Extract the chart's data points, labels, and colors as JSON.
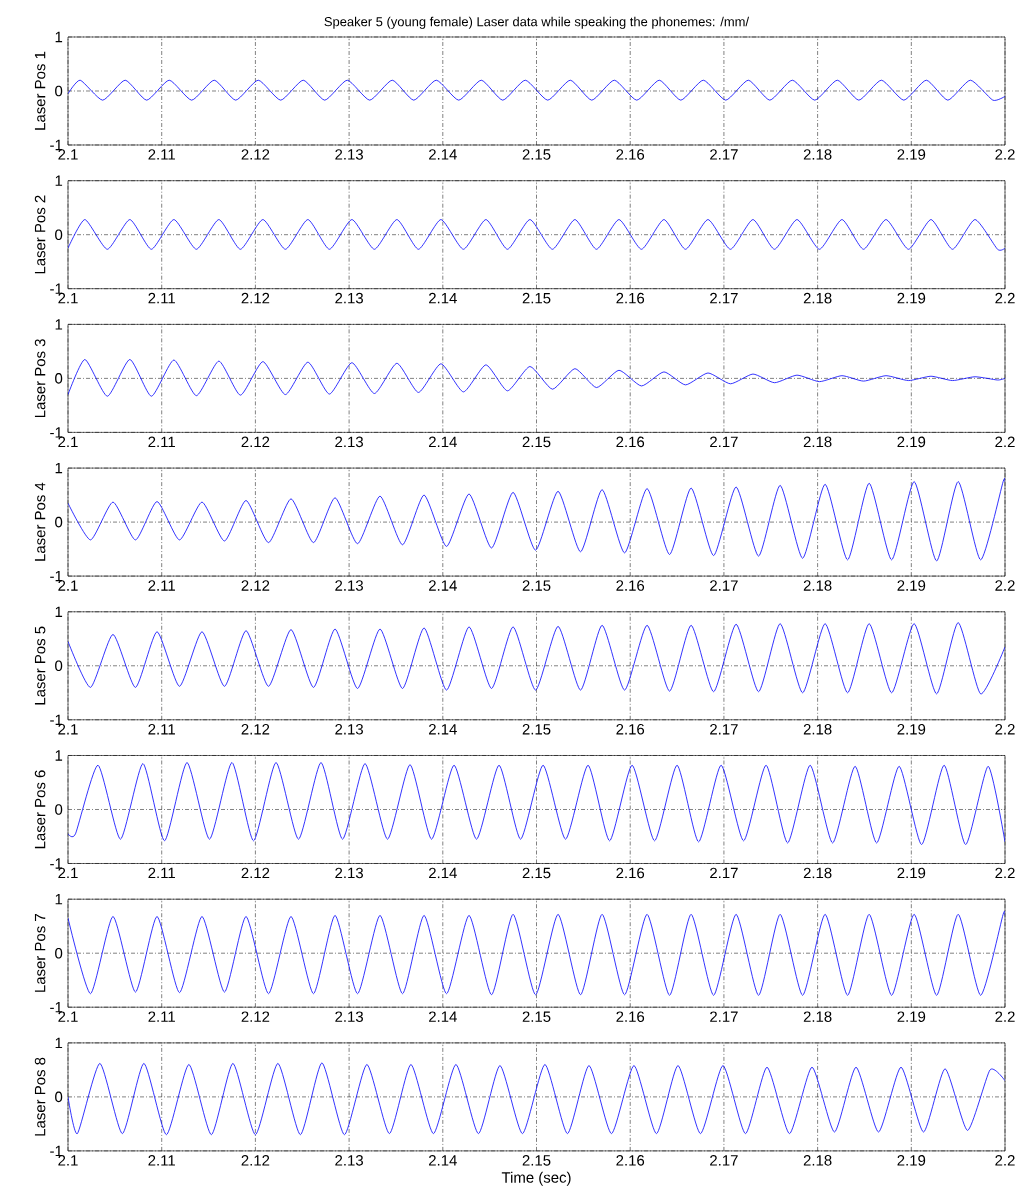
{
  "chart_data": [
    {
      "type": "line",
      "title": "Speaker 5 (young female) Laser data while speaking the phonemes: /mm/",
      "ylabel": "Laser Pos 1",
      "xlim": [
        2.1,
        2.2
      ],
      "xticks": [
        2.1,
        2.11,
        2.12,
        2.13,
        2.14,
        2.15,
        2.16,
        2.17,
        2.18,
        2.19,
        2.2
      ],
      "ylim": [
        -1,
        1
      ],
      "yticks": [
        -1,
        0,
        1
      ],
      "grid": true,
      "series": [
        {
          "color": "#0000ff",
          "x": [
            2.1,
            2.1013,
            2.1037,
            2.1061,
            2.1084,
            2.1108,
            2.1132,
            2.1156,
            2.1179,
            2.1203,
            2.1227,
            2.1251,
            2.1274,
            2.1298,
            2.1322,
            2.1346,
            2.1369,
            2.1393,
            2.1417,
            2.1441,
            2.1464,
            2.1488,
            2.1512,
            2.1536,
            2.1559,
            2.1583,
            2.1607,
            2.1631,
            2.1654,
            2.1678,
            2.1702,
            2.1726,
            2.1749,
            2.1773,
            2.1797,
            2.1821,
            2.1844,
            2.1868,
            2.1892,
            2.1916,
            2.1939,
            2.1963,
            2.1987,
            2.2
          ],
          "values": [
            -0.05,
            0.2,
            -0.17,
            0.2,
            -0.17,
            0.2,
            -0.17,
            0.2,
            -0.17,
            0.2,
            -0.17,
            0.2,
            -0.17,
            0.2,
            -0.17,
            0.2,
            -0.17,
            0.2,
            -0.17,
            0.2,
            -0.17,
            0.2,
            -0.17,
            0.2,
            -0.17,
            0.2,
            -0.17,
            0.2,
            -0.17,
            0.2,
            -0.17,
            0.2,
            -0.17,
            0.2,
            -0.17,
            0.2,
            -0.17,
            0.2,
            -0.17,
            0.2,
            -0.17,
            0.2,
            -0.17,
            -0.1
          ]
        }
      ]
    },
    {
      "type": "line",
      "ylabel": "Laser Pos 2",
      "xlim": [
        2.1,
        2.2
      ],
      "xticks": [
        2.1,
        2.11,
        2.12,
        2.13,
        2.14,
        2.15,
        2.16,
        2.17,
        2.18,
        2.19,
        2.2
      ],
      "ylim": [
        -1,
        1
      ],
      "yticks": [
        -1,
        0,
        1
      ],
      "grid": true,
      "series": [
        {
          "color": "#0000ff",
          "x": [
            2.1,
            2.1018,
            2.1042,
            2.1066,
            2.1089,
            2.1113,
            2.1137,
            2.1161,
            2.1184,
            2.1208,
            2.1232,
            2.1256,
            2.1279,
            2.1303,
            2.1327,
            2.1351,
            2.1374,
            2.1398,
            2.1422,
            2.1446,
            2.1469,
            2.1493,
            2.1517,
            2.1541,
            2.1564,
            2.1588,
            2.1612,
            2.1636,
            2.1659,
            2.1683,
            2.1707,
            2.1731,
            2.1754,
            2.1778,
            2.1802,
            2.1826,
            2.1849,
            2.1873,
            2.1897,
            2.1921,
            2.1944,
            2.1968,
            2.1992,
            2.2
          ],
          "values": [
            -0.25,
            0.28,
            -0.27,
            0.28,
            -0.27,
            0.28,
            -0.27,
            0.28,
            -0.27,
            0.28,
            -0.27,
            0.28,
            -0.27,
            0.28,
            -0.27,
            0.28,
            -0.27,
            0.28,
            -0.27,
            0.28,
            -0.27,
            0.28,
            -0.27,
            0.28,
            -0.27,
            0.28,
            -0.27,
            0.28,
            -0.27,
            0.28,
            -0.27,
            0.28,
            -0.27,
            0.28,
            -0.27,
            0.28,
            -0.27,
            0.28,
            -0.27,
            0.28,
            -0.27,
            0.28,
            -0.27,
            -0.25
          ]
        }
      ]
    },
    {
      "type": "line",
      "ylabel": "Laser Pos 3",
      "xlim": [
        2.1,
        2.2
      ],
      "xticks": [
        2.1,
        2.11,
        2.12,
        2.13,
        2.14,
        2.15,
        2.16,
        2.17,
        2.18,
        2.19,
        2.2
      ],
      "ylim": [
        -1,
        1
      ],
      "yticks": [
        -1,
        0,
        1
      ],
      "grid": true,
      "series": [
        {
          "color": "#0000ff",
          "x": [
            2.1,
            2.1018,
            2.1042,
            2.1066,
            2.1089,
            2.1113,
            2.1137,
            2.1161,
            2.1184,
            2.1208,
            2.1232,
            2.1256,
            2.1279,
            2.1303,
            2.1327,
            2.1351,
            2.1374,
            2.1398,
            2.1422,
            2.1446,
            2.1469,
            2.1493,
            2.1517,
            2.1541,
            2.1564,
            2.1588,
            2.1612,
            2.1636,
            2.1659,
            2.1683,
            2.1707,
            2.1731,
            2.1754,
            2.1778,
            2.1802,
            2.1826,
            2.1849,
            2.1873,
            2.1897,
            2.1921,
            2.1944,
            2.1968,
            2.1992,
            2.2
          ],
          "values": [
            -0.3,
            0.35,
            -0.33,
            0.35,
            -0.33,
            0.34,
            -0.32,
            0.32,
            -0.31,
            0.31,
            -0.3,
            0.3,
            -0.29,
            0.29,
            -0.28,
            0.28,
            -0.26,
            0.27,
            -0.25,
            0.25,
            -0.23,
            0.22,
            -0.2,
            0.18,
            -0.17,
            0.15,
            -0.14,
            0.12,
            -0.12,
            0.1,
            -0.1,
            0.08,
            -0.08,
            0.06,
            -0.06,
            0.05,
            -0.05,
            0.05,
            -0.04,
            0.04,
            -0.04,
            0.03,
            -0.03,
            0
          ]
        }
      ]
    },
    {
      "type": "line",
      "ylabel": "Laser Pos 4",
      "xlim": [
        2.1,
        2.2
      ],
      "xticks": [
        2.1,
        2.11,
        2.12,
        2.13,
        2.14,
        2.15,
        2.16,
        2.17,
        2.18,
        2.19,
        2.2
      ],
      "ylim": [
        -1,
        1
      ],
      "yticks": [
        -1,
        0,
        1
      ],
      "grid": true,
      "series": [
        {
          "color": "#0000ff",
          "x": [
            2.1,
            2.1024,
            2.1048,
            2.1072,
            2.1095,
            2.1119,
            2.1143,
            2.1167,
            2.119,
            2.1214,
            2.1238,
            2.1262,
            2.1285,
            2.1309,
            2.1333,
            2.1357,
            2.138,
            2.1404,
            2.1428,
            2.1452,
            2.1475,
            2.1499,
            2.1523,
            2.1547,
            2.157,
            2.1594,
            2.1618,
            2.1642,
            2.1665,
            2.1689,
            2.1713,
            2.1737,
            2.176,
            2.1784,
            2.1808,
            2.1832,
            2.1855,
            2.1879,
            2.1903,
            2.1927,
            2.195,
            2.1974,
            2.1998,
            2.2
          ],
          "values": [
            0.35,
            -0.33,
            0.37,
            -0.33,
            0.38,
            -0.33,
            0.37,
            -0.35,
            0.4,
            -0.38,
            0.43,
            -0.38,
            0.45,
            -0.4,
            0.48,
            -0.42,
            0.5,
            -0.45,
            0.52,
            -0.48,
            0.55,
            -0.52,
            0.57,
            -0.55,
            0.6,
            -0.57,
            0.62,
            -0.6,
            0.63,
            -0.62,
            0.65,
            -0.63,
            0.68,
            -0.67,
            0.7,
            -0.7,
            0.72,
            -0.7,
            0.75,
            -0.72,
            0.75,
            -0.7,
            0.75,
            0.74
          ]
        }
      ]
    },
    {
      "type": "line",
      "ylabel": "Laser Pos 5",
      "xlim": [
        2.1,
        2.2
      ],
      "xticks": [
        2.1,
        2.11,
        2.12,
        2.13,
        2.14,
        2.15,
        2.16,
        2.17,
        2.18,
        2.19,
        2.2
      ],
      "ylim": [
        -1,
        1
      ],
      "yticks": [
        -1,
        0,
        1
      ],
      "grid": true,
      "series": [
        {
          "color": "#0000ff",
          "x": [
            2.1,
            2.1024,
            2.1048,
            2.1072,
            2.1095,
            2.1119,
            2.1143,
            2.1167,
            2.119,
            2.1214,
            2.1238,
            2.1262,
            2.1285,
            2.1309,
            2.1333,
            2.1357,
            2.138,
            2.1404,
            2.1428,
            2.1452,
            2.1475,
            2.1499,
            2.1523,
            2.1547,
            2.157,
            2.1594,
            2.1618,
            2.1642,
            2.1665,
            2.1689,
            2.1713,
            2.1737,
            2.176,
            2.1784,
            2.1808,
            2.1832,
            2.1855,
            2.1879,
            2.1903,
            2.1927,
            2.195,
            2.1974,
            2.2
          ],
          "values": [
            0.45,
            -0.4,
            0.58,
            -0.4,
            0.63,
            -0.38,
            0.63,
            -0.38,
            0.65,
            -0.38,
            0.67,
            -0.4,
            0.68,
            -0.42,
            0.68,
            -0.42,
            0.7,
            -0.45,
            0.72,
            -0.42,
            0.72,
            -0.45,
            0.73,
            -0.45,
            0.75,
            -0.45,
            0.75,
            -0.47,
            0.75,
            -0.48,
            0.77,
            -0.48,
            0.78,
            -0.5,
            0.78,
            -0.5,
            0.78,
            -0.5,
            0.78,
            -0.52,
            0.8,
            -0.52,
            0.35
          ]
        }
      ]
    },
    {
      "type": "line",
      "ylabel": "Laser Pos 6",
      "xlim": [
        2.1,
        2.2
      ],
      "xticks": [
        2.1,
        2.11,
        2.12,
        2.13,
        2.14,
        2.15,
        2.16,
        2.17,
        2.18,
        2.19,
        2.2
      ],
      "ylim": [
        -1,
        1
      ],
      "yticks": [
        -1,
        0,
        1
      ],
      "grid": true,
      "series": [
        {
          "color": "#0000ff",
          "x": [
            2.1,
            2.1008,
            2.1032,
            2.1056,
            2.108,
            2.1103,
            2.1127,
            2.1151,
            2.1175,
            2.1198,
            2.1222,
            2.1246,
            2.127,
            2.1293,
            2.1317,
            2.1341,
            2.1365,
            2.1388,
            2.1412,
            2.1436,
            2.146,
            2.1483,
            2.1507,
            2.1531,
            2.1555,
            2.1578,
            2.1602,
            2.1626,
            2.165,
            2.1673,
            2.1697,
            2.1721,
            2.1745,
            2.1768,
            2.1792,
            2.1816,
            2.184,
            2.1863,
            2.1887,
            2.1911,
            2.1935,
            2.1958,
            2.1982,
            2.2
          ],
          "values": [
            -0.45,
            -0.45,
            0.82,
            -0.55,
            0.85,
            -0.58,
            0.87,
            -0.55,
            0.87,
            -0.58,
            0.87,
            -0.55,
            0.87,
            -0.55,
            0.85,
            -0.55,
            0.83,
            -0.55,
            0.82,
            -0.55,
            0.82,
            -0.55,
            0.82,
            -0.55,
            0.82,
            -0.58,
            0.82,
            -0.58,
            0.82,
            -0.6,
            0.82,
            -0.58,
            0.82,
            -0.62,
            0.82,
            -0.62,
            0.8,
            -0.62,
            0.8,
            -0.65,
            0.82,
            -0.65,
            0.8,
            -0.6
          ]
        }
      ]
    },
    {
      "type": "line",
      "ylabel": "Laser Pos 7",
      "xlim": [
        2.1,
        2.2
      ],
      "xticks": [
        2.1,
        2.11,
        2.12,
        2.13,
        2.14,
        2.15,
        2.16,
        2.17,
        2.18,
        2.19,
        2.2
      ],
      "ylim": [
        -1,
        1
      ],
      "yticks": [
        -1,
        0,
        1
      ],
      "grid": true,
      "series": [
        {
          "color": "#0000ff",
          "x": [
            2.1,
            2.1024,
            2.1048,
            2.1072,
            2.1095,
            2.1119,
            2.1143,
            2.1167,
            2.119,
            2.1214,
            2.1238,
            2.1262,
            2.1285,
            2.1309,
            2.1333,
            2.1357,
            2.138,
            2.1404,
            2.1428,
            2.1452,
            2.1475,
            2.1499,
            2.1523,
            2.1547,
            2.157,
            2.1594,
            2.1618,
            2.1642,
            2.1665,
            2.1689,
            2.1713,
            2.1737,
            2.176,
            2.1784,
            2.1808,
            2.1832,
            2.1855,
            2.1879,
            2.1903,
            2.1927,
            2.195,
            2.1974,
            2.1998,
            2.2
          ],
          "values": [
            0.65,
            -0.75,
            0.68,
            -0.72,
            0.68,
            -0.73,
            0.68,
            -0.72,
            0.68,
            -0.75,
            0.68,
            -0.75,
            0.7,
            -0.75,
            0.7,
            -0.75,
            0.7,
            -0.75,
            0.7,
            -0.77,
            0.72,
            -0.77,
            0.72,
            -0.77,
            0.72,
            -0.77,
            0.72,
            -0.78,
            0.72,
            -0.78,
            0.72,
            -0.78,
            0.72,
            -0.78,
            0.72,
            -0.78,
            0.72,
            -0.78,
            0.72,
            -0.78,
            0.72,
            -0.78,
            0.72,
            0.7
          ]
        }
      ]
    },
    {
      "type": "line",
      "ylabel": "Laser Pos 8",
      "xlabel": "Time (sec)",
      "xlim": [
        2.1,
        2.2
      ],
      "xticks": [
        2.1,
        2.11,
        2.12,
        2.13,
        2.14,
        2.15,
        2.16,
        2.17,
        2.18,
        2.19,
        2.2
      ],
      "ylim": [
        -1,
        1
      ],
      "yticks": [
        -1,
        0,
        1
      ],
      "grid": true,
      "series": [
        {
          "color": "#0000ff",
          "x": [
            2.1,
            2.101,
            2.1034,
            2.1058,
            2.1081,
            2.1105,
            2.1129,
            2.1153,
            2.1176,
            2.12,
            2.1224,
            2.1248,
            2.1271,
            2.1295,
            2.1319,
            2.1343,
            2.1366,
            2.139,
            2.1414,
            2.1438,
            2.1461,
            2.1485,
            2.1509,
            2.1533,
            2.1556,
            2.158,
            2.1604,
            2.1628,
            2.1651,
            2.1675,
            2.1699,
            2.1723,
            2.1746,
            2.177,
            2.1794,
            2.1818,
            2.1841,
            2.1865,
            2.1889,
            2.1913,
            2.1936,
            2.196,
            2.1984,
            2.2
          ],
          "values": [
            0,
            -0.68,
            0.62,
            -0.68,
            0.62,
            -0.7,
            0.6,
            -0.7,
            0.62,
            -0.7,
            0.62,
            -0.7,
            0.63,
            -0.7,
            0.6,
            -0.68,
            0.6,
            -0.68,
            0.6,
            -0.68,
            0.58,
            -0.68,
            0.6,
            -0.68,
            0.58,
            -0.68,
            0.58,
            -0.68,
            0.58,
            -0.68,
            0.58,
            -0.68,
            0.55,
            -0.68,
            0.55,
            -0.65,
            0.55,
            -0.65,
            0.55,
            -0.65,
            0.52,
            -0.62,
            0.5,
            0.3
          ]
        }
      ]
    }
  ]
}
